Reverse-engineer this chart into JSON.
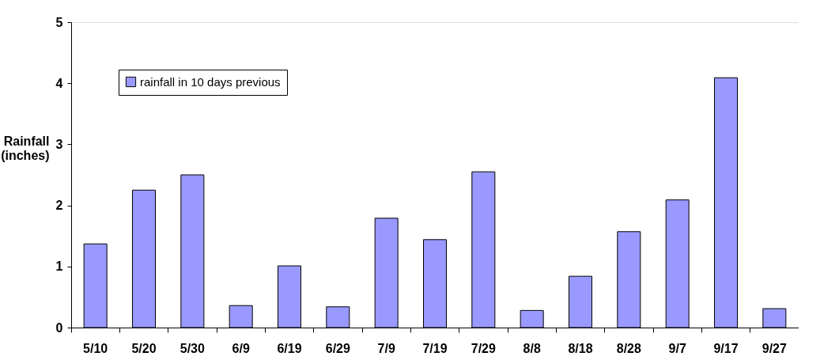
{
  "chart_data": {
    "type": "bar",
    "ylabel": "Rainfall (inches)",
    "categories": [
      "5/10",
      "5/20",
      "5/30",
      "6/9",
      "6/19",
      "6/29",
      "7/9",
      "7/19",
      "7/29",
      "8/8",
      "8/18",
      "8/28",
      "9/7",
      "9/17",
      "9/27"
    ],
    "series": [
      {
        "name": "rainfall in 10 days previous",
        "color": "#9999ff",
        "values": [
          1.37,
          2.25,
          2.5,
          0.36,
          1.01,
          0.34,
          1.79,
          1.44,
          2.55,
          0.28,
          0.84,
          1.57,
          2.09,
          4.09,
          0.31
        ]
      }
    ],
    "ylim": [
      0,
      5
    ],
    "yticks": [
      0,
      1,
      2,
      3,
      4,
      5
    ],
    "grid": false,
    "legend": "top left"
  }
}
